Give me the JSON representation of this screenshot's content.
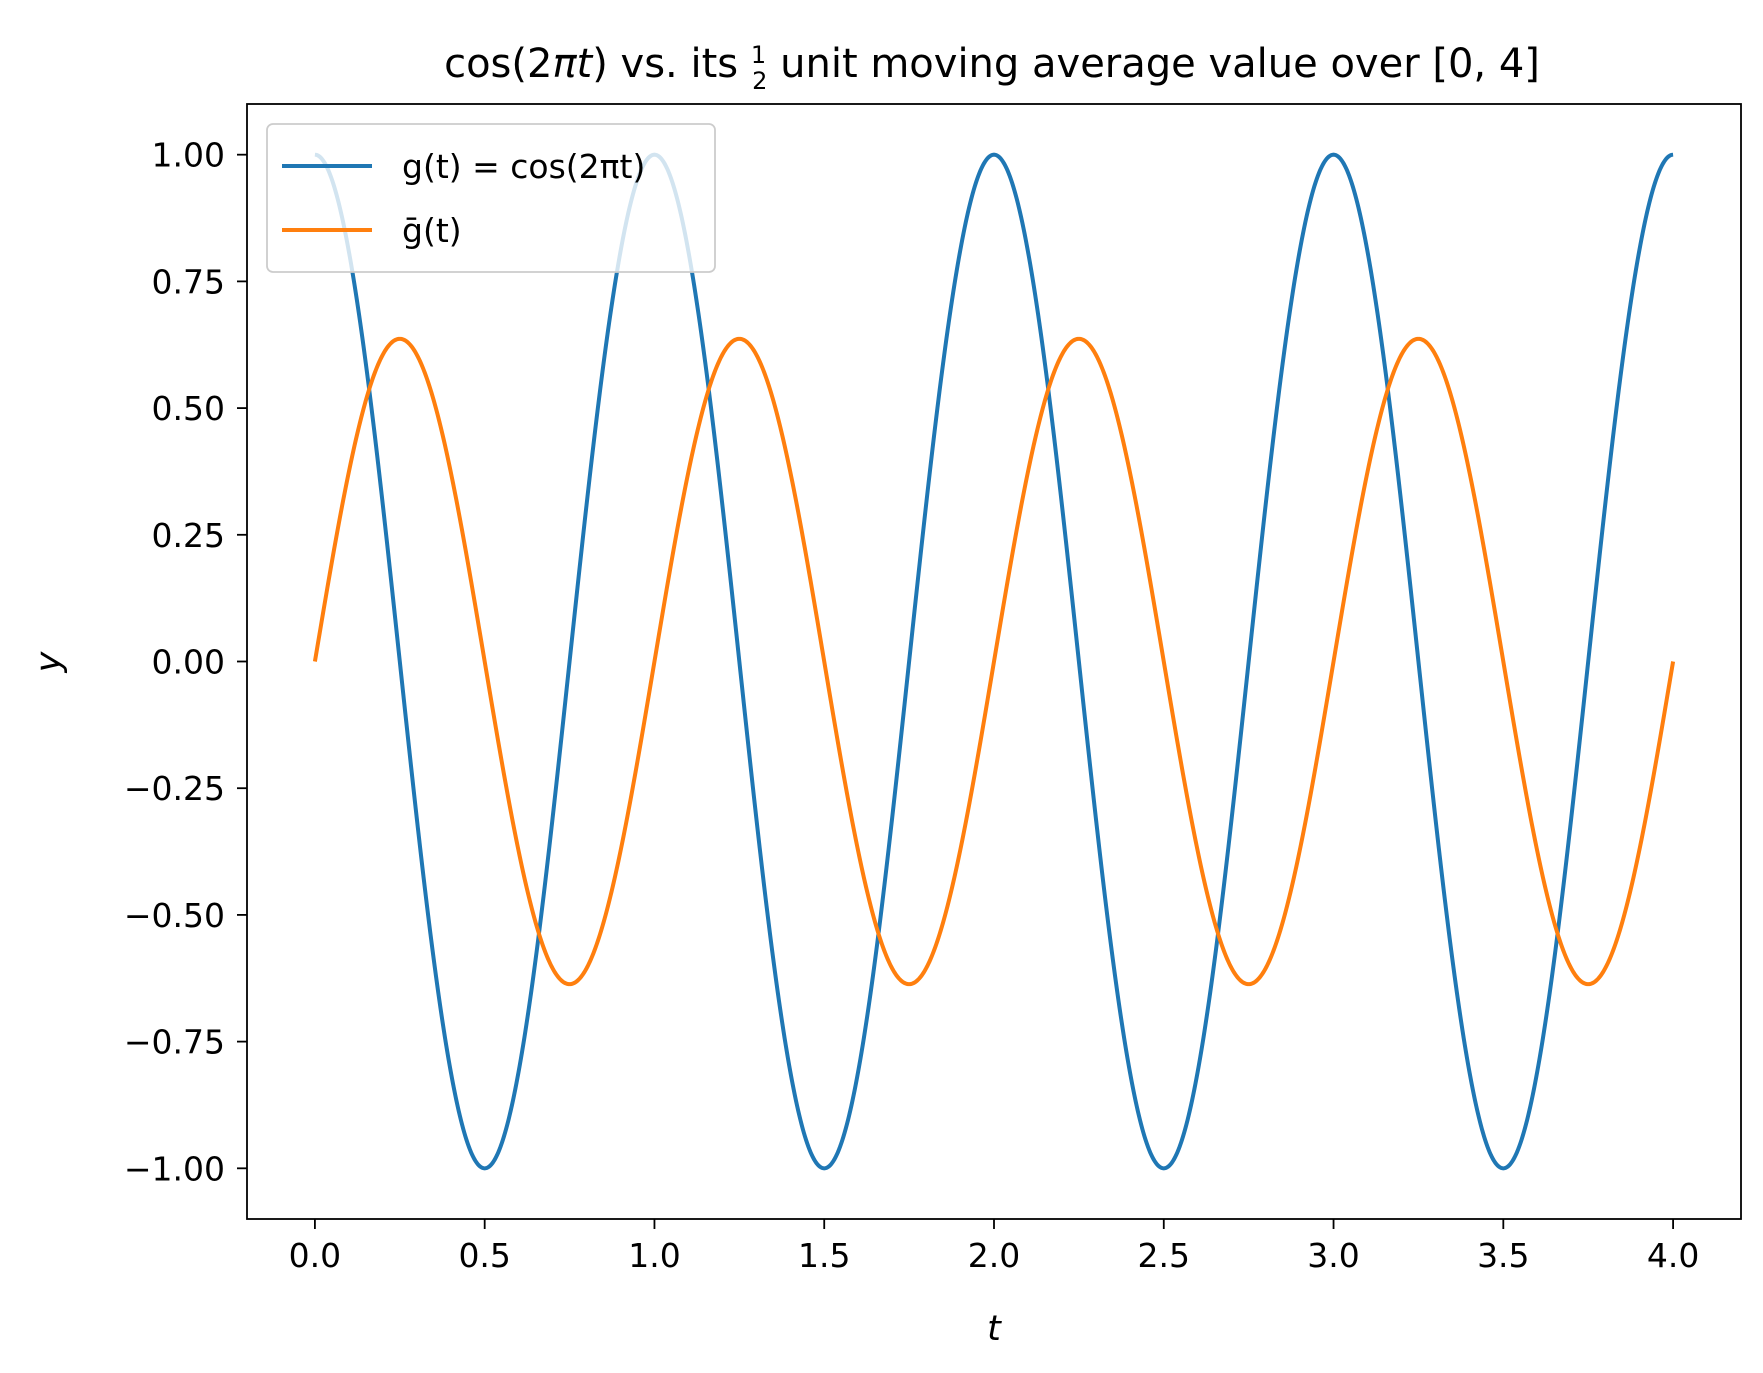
{
  "chart_data": {
    "type": "line",
    "title": "cos(2πt) vs. its ½ unit moving average value over [0, 4]",
    "title_parts": {
      "prefix": "cos(2",
      "pi": "π",
      "t": "t",
      "mid": ") vs. its ",
      "frac_num": "1",
      "frac_den": "2",
      "suffix": " unit moving average value over [0, 4]"
    },
    "xlabel": "t",
    "ylabel": "y",
    "xlim": [
      -0.2,
      4.2
    ],
    "ylim": [
      -1.1,
      1.1
    ],
    "xticks": [
      "0.0",
      "0.5",
      "1.0",
      "1.5",
      "2.0",
      "2.5",
      "3.0",
      "3.5",
      "4.0"
    ],
    "xtick_values": [
      0,
      0.5,
      1,
      1.5,
      2,
      2.5,
      3,
      3.5,
      4
    ],
    "yticks": [
      "1.00",
      "0.75",
      "0.50",
      "0.25",
      "0.00",
      "−0.25",
      "−0.50",
      "−0.75",
      "−1.00"
    ],
    "ytick_values": [
      1,
      0.75,
      0.5,
      0.25,
      0,
      -0.25,
      -0.5,
      -0.75,
      -1
    ],
    "grid": false,
    "legend_position": "top-left",
    "series": [
      {
        "name": "g(t) = cos(2πt)",
        "color": "#1f77b4",
        "function": "cos(2πt)",
        "x_range": [
          0,
          4
        ]
      },
      {
        "name": "ḡ(t)",
        "color": "#ff7f0e",
        "function": "sin(2πt)·(2/π)",
        "x_range": [
          0,
          4
        ]
      }
    ],
    "legend_entries": {
      "g_label": "g(t) = cos(2πt)",
      "gbar_label": "ḡ(t)"
    }
  }
}
